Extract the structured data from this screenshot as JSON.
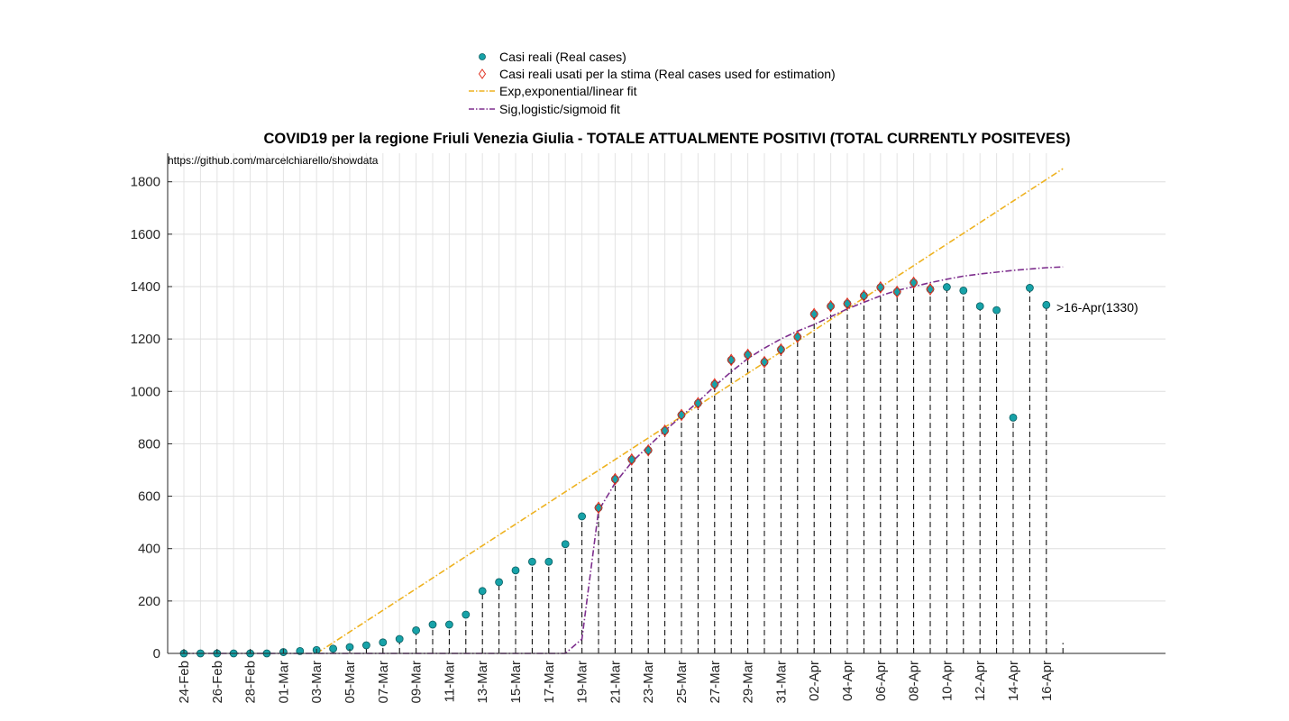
{
  "chart_data": {
    "type": "scatter",
    "title": "COVID19 per la regione Friuli Venezia Giulia - TOTALE ATTUALMENTE POSITIVI (TOTAL CURRENTLY POSITEVES)",
    "source_note": "https://github.com/marcelchiarello/showdata",
    "annotation": ">16-Apr(1330)",
    "xlabel": "",
    "ylabel": "",
    "ylim": [
      0,
      1900
    ],
    "y_ticks": [
      0,
      200,
      400,
      600,
      800,
      1000,
      1200,
      1400,
      1600,
      1800
    ],
    "grid": true,
    "legend_position": "top-center",
    "colors": {
      "real": "#17a2a8",
      "used": "#e03020",
      "exp": "#eeb220",
      "sig": "#7e2f8e"
    },
    "x_labels": [
      "24-Feb",
      "26-Feb",
      "28-Feb",
      "01-Mar",
      "03-Mar",
      "05-Mar",
      "07-Mar",
      "09-Mar",
      "11-Mar",
      "13-Mar",
      "15-Mar",
      "17-Mar",
      "19-Mar",
      "21-Mar",
      "23-Mar",
      "25-Mar",
      "27-Mar",
      "29-Mar",
      "31-Mar",
      "02-Apr",
      "04-Apr",
      "06-Apr",
      "08-Apr",
      "10-Apr",
      "12-Apr",
      "14-Apr",
      "16-Apr"
    ],
    "dates": [
      "24-Feb",
      "25-Feb",
      "26-Feb",
      "27-Feb",
      "28-Feb",
      "29-Feb",
      "01-Mar",
      "02-Mar",
      "03-Mar",
      "04-Mar",
      "05-Mar",
      "06-Mar",
      "07-Mar",
      "08-Mar",
      "09-Mar",
      "10-Mar",
      "11-Mar",
      "12-Mar",
      "13-Mar",
      "14-Mar",
      "15-Mar",
      "16-Mar",
      "17-Mar",
      "18-Mar",
      "19-Mar",
      "20-Mar",
      "21-Mar",
      "22-Mar",
      "23-Mar",
      "24-Mar",
      "25-Mar",
      "26-Mar",
      "27-Mar",
      "28-Mar",
      "29-Mar",
      "30-Mar",
      "31-Mar",
      "01-Apr",
      "02-Apr",
      "03-Apr",
      "04-Apr",
      "05-Apr",
      "06-Apr",
      "07-Apr",
      "08-Apr",
      "09-Apr",
      "10-Apr",
      "11-Apr",
      "12-Apr",
      "13-Apr",
      "14-Apr",
      "15-Apr",
      "16-Apr"
    ],
    "series": [
      {
        "name": "Casi reali (Real cases)",
        "values": [
          0,
          0,
          0,
          0,
          0,
          0,
          5,
          9,
          13,
          18,
          24,
          31,
          42,
          55,
          88,
          110,
          110,
          148,
          238,
          272,
          317,
          350,
          350,
          417,
          523,
          556,
          665,
          740,
          775,
          850,
          910,
          955,
          1027,
          1120,
          1140,
          1112,
          1160,
          1208,
          1295,
          1325,
          1335,
          1365,
          1397,
          1380,
          1415,
          1390,
          1398,
          1385,
          1325,
          1310,
          900,
          1395,
          1330
        ]
      },
      {
        "name": "Casi reali usati per la stima (Real cases used for estimation)",
        "values": [
          null,
          null,
          null,
          null,
          null,
          null,
          null,
          null,
          null,
          null,
          null,
          null,
          null,
          null,
          null,
          null,
          null,
          null,
          null,
          null,
          null,
          null,
          null,
          null,
          null,
          556,
          665,
          740,
          775,
          850,
          910,
          955,
          1027,
          1120,
          1140,
          1112,
          1160,
          1208,
          1295,
          1325,
          1335,
          1365,
          1397,
          1380,
          1415,
          1390,
          null,
          null,
          null,
          null,
          null,
          null,
          null
        ]
      },
      {
        "name": "Exp,exponential/linear fit",
        "x": [
          "03-Mar",
          "17-Apr"
        ],
        "values": [
          0,
          1850
        ]
      },
      {
        "name": "Sig,logistic/sigmoid fit",
        "x": [
          "24-Feb",
          "18-Mar",
          "19-Mar",
          "20-Mar",
          "21-Mar",
          "22-Mar",
          "23-Mar",
          "24-Mar",
          "25-Mar",
          "26-Mar",
          "27-Mar",
          "28-Mar",
          "29-Mar",
          "30-Mar",
          "31-Mar",
          "01-Apr",
          "02-Apr",
          "03-Apr",
          "04-Apr",
          "05-Apr",
          "06-Apr",
          "07-Apr",
          "08-Apr",
          "09-Apr",
          "10-Apr",
          "11-Apr",
          "12-Apr",
          "13-Apr",
          "14-Apr",
          "15-Apr",
          "16-Apr",
          "17-Apr"
        ],
        "values": [
          0,
          0,
          55,
          545,
          650,
          730,
          790,
          850,
          905,
          960,
          1020,
          1075,
          1125,
          1165,
          1200,
          1230,
          1255,
          1285,
          1315,
          1340,
          1365,
          1385,
          1400,
          1415,
          1428,
          1440,
          1448,
          1455,
          1462,
          1467,
          1472,
          1475
        ]
      }
    ]
  }
}
